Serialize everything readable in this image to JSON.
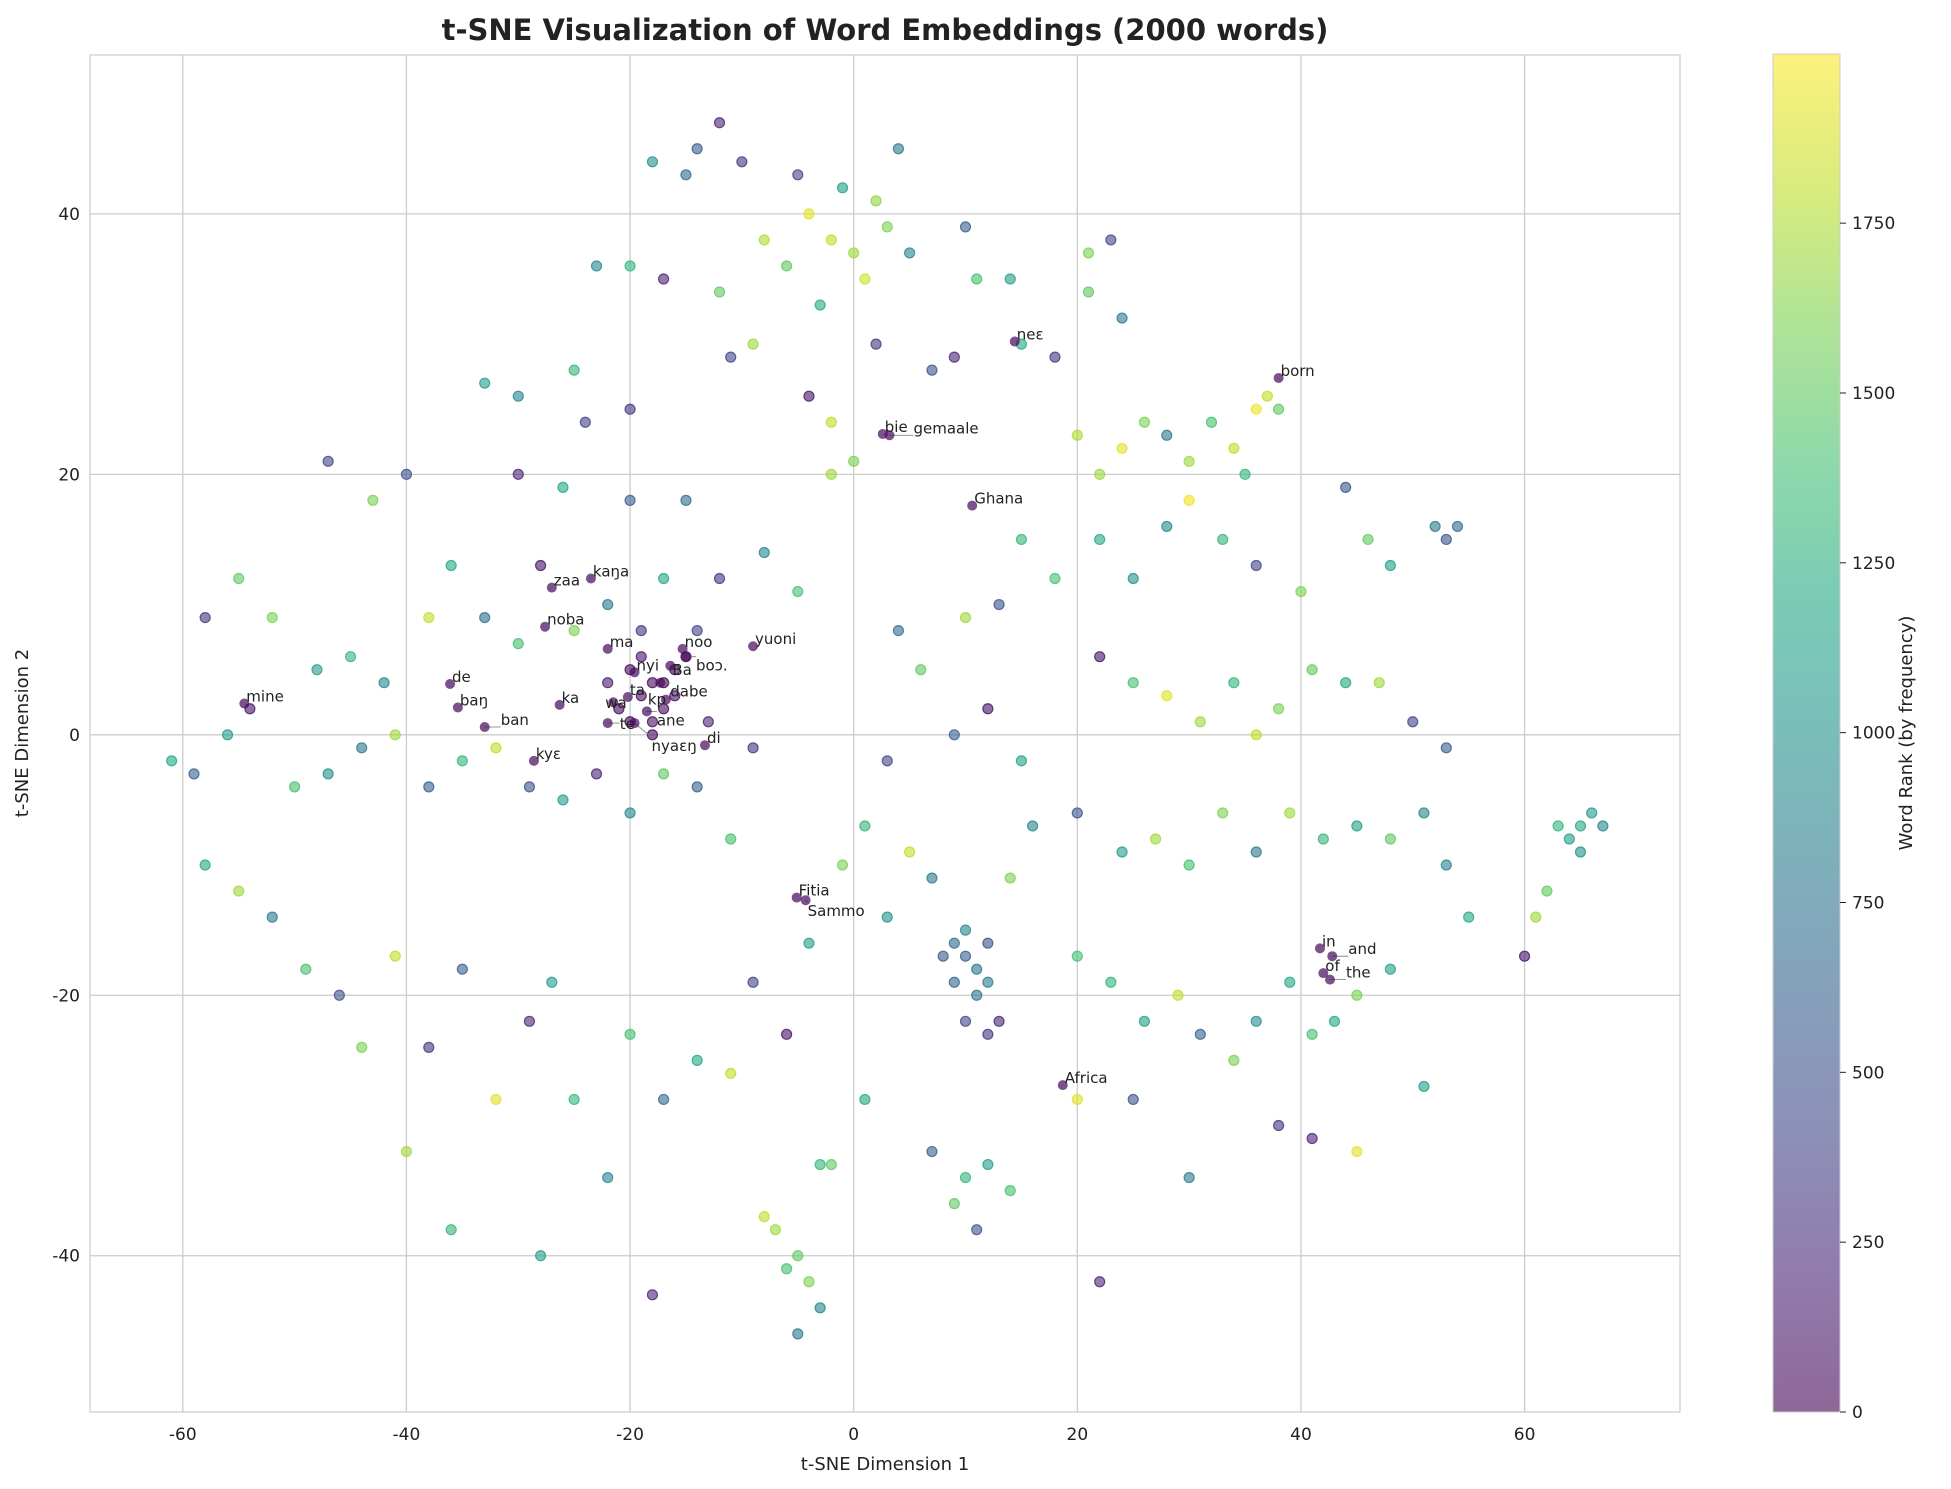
{
  "chart_data": {
    "type": "scatter",
    "title": "t-SNE Visualization of Word Embeddings (2000 words)",
    "xlabel": "t-SNE Dimension 1",
    "ylabel": "t-SNE Dimension 2",
    "xlim": [
      -68.3,
      73.9
    ],
    "ylim": [
      -52,
      52.2
    ],
    "xticks": [
      -60,
      -40,
      -20,
      0,
      20,
      40,
      60
    ],
    "yticks": [
      -40,
      -20,
      0,
      20,
      40
    ],
    "grid": true,
    "colormap": "viridis",
    "point_alpha": 0.6,
    "colorbar": {
      "label": "Word Rank (by frequency)",
      "range": [
        0,
        1999
      ],
      "ticks": [
        0,
        250,
        500,
        750,
        1000,
        1250,
        1500,
        1750
      ]
    },
    "points_note_fields": [
      "x",
      "y",
      "rank"
    ],
    "points": [
      [
        -2,
        38,
        1800
      ],
      [
        -4,
        40,
        1900
      ],
      [
        0,
        37,
        1700
      ],
      [
        3,
        39,
        1600
      ],
      [
        -6,
        36,
        1500
      ],
      [
        1,
        35,
        1850
      ],
      [
        -3,
        33,
        1200
      ],
      [
        5,
        37,
        900
      ],
      [
        -8,
        38,
        1750
      ],
      [
        2,
        41,
        1650
      ],
      [
        -1,
        42,
        1100
      ],
      [
        -5,
        43,
        400
      ],
      [
        -10,
        44,
        300
      ],
      [
        -14,
        45,
        600
      ],
      [
        -12,
        47,
        200
      ],
      [
        -18,
        44,
        1000
      ],
      [
        -15,
        43,
        700
      ],
      [
        4,
        45,
        800
      ],
      [
        -20,
        36,
        1300
      ],
      [
        -17,
        35,
        200
      ],
      [
        -23,
        36,
        900
      ],
      [
        -12,
        34,
        1500
      ],
      [
        -9,
        30,
        1700
      ],
      [
        -11,
        29,
        400
      ],
      [
        -4,
        26,
        100
      ],
      [
        -2,
        24,
        1800
      ],
      [
        0,
        21,
        1600
      ],
      [
        2,
        30,
        300
      ],
      [
        7,
        28,
        500
      ],
      [
        9,
        29,
        200
      ],
      [
        10,
        39,
        600
      ],
      [
        11,
        35,
        1400
      ],
      [
        14,
        35,
        1100
      ],
      [
        15,
        30,
        1200
      ],
      [
        18,
        29,
        300
      ],
      [
        21,
        37,
        1600
      ],
      [
        23,
        38,
        400
      ],
      [
        24,
        32,
        800
      ],
      [
        21,
        34,
        1500
      ],
      [
        -33,
        27,
        1100
      ],
      [
        -30,
        26,
        900
      ],
      [
        -25,
        28,
        1300
      ],
      [
        -24,
        24,
        400
      ],
      [
        -20,
        25,
        300
      ],
      [
        -40,
        20,
        500
      ],
      [
        -43,
        18,
        1600
      ],
      [
        -47,
        21,
        400
      ],
      [
        -30,
        20,
        200
      ],
      [
        -26,
        19,
        1200
      ],
      [
        -20,
        18,
        600
      ],
      [
        -15,
        18,
        700
      ],
      [
        -12,
        12,
        300
      ],
      [
        -8,
        14,
        900
      ],
      [
        -5,
        11,
        1400
      ],
      [
        -2,
        20,
        1700
      ],
      [
        -55,
        12,
        1500
      ],
      [
        -58,
        9,
        300
      ],
      [
        -52,
        9,
        1600
      ],
      [
        -48,
        5,
        1100
      ],
      [
        -45,
        6,
        1300
      ],
      [
        -42,
        4,
        900
      ],
      [
        -38,
        9,
        1800
      ],
      [
        -36,
        13,
        1200
      ],
      [
        -33,
        9,
        700
      ],
      [
        -30,
        7,
        1400
      ],
      [
        -28,
        13,
        100
      ],
      [
        -25,
        8,
        1600
      ],
      [
        -22,
        10,
        800
      ],
      [
        -19,
        8,
        300
      ],
      [
        -17,
        12,
        1200
      ],
      [
        -14,
        8,
        400
      ],
      [
        -61,
        -2,
        1200
      ],
      [
        -59,
        -3,
        600
      ],
      [
        -56,
        0,
        1100
      ],
      [
        -54,
        2,
        100
      ],
      [
        -50,
        -4,
        1400
      ],
      [
        -47,
        -3,
        1000
      ],
      [
        -44,
        -1,
        800
      ],
      [
        -41,
        0,
        1700
      ],
      [
        -38,
        -4,
        600
      ],
      [
        -35,
        -2,
        1300
      ],
      [
        -32,
        -1,
        1800
      ],
      [
        -29,
        -4,
        500
      ],
      [
        -26,
        -5,
        1100
      ],
      [
        -23,
        -3,
        200
      ],
      [
        -20,
        -6,
        900
      ],
      [
        -17,
        -3,
        1500
      ],
      [
        -14,
        -4,
        600
      ],
      [
        -11,
        -8,
        1400
      ],
      [
        -9,
        -1,
        300
      ],
      [
        -20,
        5,
        50
      ],
      [
        -19,
        3,
        80
      ],
      [
        -18,
        4,
        30
      ],
      [
        -17,
        2,
        60
      ],
      [
        -16,
        5,
        20
      ],
      [
        -18,
        1,
        90
      ],
      [
        -21,
        2,
        40
      ],
      [
        -16,
        3,
        110
      ],
      [
        -15,
        6,
        70
      ],
      [
        -19,
        6,
        120
      ],
      [
        -22,
        4,
        150
      ],
      [
        -13,
        1,
        200
      ],
      [
        -18,
        0,
        10
      ],
      [
        -20,
        1,
        25
      ],
      [
        -17,
        4,
        5
      ],
      [
        -58,
        -10,
        1200
      ],
      [
        -55,
        -12,
        1700
      ],
      [
        -52,
        -14,
        800
      ],
      [
        -49,
        -18,
        1400
      ],
      [
        -46,
        -20,
        500
      ],
      [
        -44,
        -24,
        1600
      ],
      [
        -41,
        -17,
        1800
      ],
      [
        -38,
        -24,
        300
      ],
      [
        -35,
        -18,
        600
      ],
      [
        -32,
        -28,
        1900
      ],
      [
        -29,
        -22,
        200
      ],
      [
        -27,
        -19,
        1100
      ],
      [
        -25,
        -28,
        1300
      ],
      [
        -22,
        -34,
        900
      ],
      [
        -20,
        -23,
        1400
      ],
      [
        -17,
        -28,
        700
      ],
      [
        -14,
        -25,
        1200
      ],
      [
        -11,
        -26,
        1800
      ],
      [
        -9,
        -19,
        400
      ],
      [
        -6,
        -23,
        100
      ],
      [
        -28,
        -40,
        1100
      ],
      [
        -40,
        -32,
        1700
      ],
      [
        -36,
        -38,
        1300
      ],
      [
        -5,
        -40,
        1500
      ],
      [
        -4,
        -42,
        1600
      ],
      [
        -3,
        -44,
        900
      ],
      [
        -5,
        -46,
        800
      ],
      [
        -7,
        -38,
        1700
      ],
      [
        -8,
        -37,
        1800
      ],
      [
        -6,
        -41,
        1400
      ],
      [
        -3,
        -33,
        1300
      ],
      [
        -18,
        -43,
        200
      ],
      [
        1,
        -28,
        1200
      ],
      [
        -2,
        -33,
        1500
      ],
      [
        9,
        -16,
        700
      ],
      [
        10,
        -17,
        600
      ],
      [
        11,
        -18,
        800
      ],
      [
        12,
        -16,
        500
      ],
      [
        10,
        -15,
        900
      ],
      [
        9,
        -19,
        650
      ],
      [
        11,
        -20,
        750
      ],
      [
        8,
        -17,
        550
      ],
      [
        12,
        -19,
        850
      ],
      [
        10,
        -22,
        400
      ],
      [
        12,
        -23,
        300
      ],
      [
        13,
        -22,
        200
      ],
      [
        10,
        -34,
        1300
      ],
      [
        9,
        -36,
        1500
      ],
      [
        12,
        -33,
        1100
      ],
      [
        14,
        -35,
        1400
      ],
      [
        7,
        -32,
        600
      ],
      [
        11,
        -38,
        500
      ],
      [
        22,
        20,
        1700
      ],
      [
        24,
        22,
        1900
      ],
      [
        26,
        24,
        1600
      ],
      [
        28,
        23,
        800
      ],
      [
        30,
        21,
        1700
      ],
      [
        32,
        24,
        1400
      ],
      [
        34,
        22,
        1800
      ],
      [
        36,
        25,
        1950
      ],
      [
        37,
        26,
        1800
      ],
      [
        38,
        25,
        1500
      ],
      [
        35,
        20,
        1300
      ],
      [
        20,
        23,
        1750
      ],
      [
        22,
        15,
        1200
      ],
      [
        25,
        12,
        1000
      ],
      [
        28,
        16,
        900
      ],
      [
        30,
        18,
        1950
      ],
      [
        33,
        15,
        1300
      ],
      [
        36,
        13,
        400
      ],
      [
        40,
        11,
        1600
      ],
      [
        44,
        19,
        500
      ],
      [
        46,
        15,
        1500
      ],
      [
        48,
        13,
        1100
      ],
      [
        52,
        16,
        800
      ],
      [
        53,
        15,
        500
      ],
      [
        54,
        16,
        700
      ],
      [
        22,
        6,
        100
      ],
      [
        25,
        4,
        1400
      ],
      [
        28,
        3,
        1900
      ],
      [
        31,
        1,
        1700
      ],
      [
        34,
        4,
        1300
      ],
      [
        36,
        0,
        1800
      ],
      [
        38,
        2,
        1600
      ],
      [
        41,
        5,
        1500
      ],
      [
        44,
        4,
        1200
      ],
      [
        47,
        4,
        1700
      ],
      [
        50,
        1,
        400
      ],
      [
        53,
        -1,
        600
      ],
      [
        20,
        -6,
        500
      ],
      [
        24,
        -9,
        1100
      ],
      [
        27,
        -8,
        1700
      ],
      [
        30,
        -10,
        1400
      ],
      [
        33,
        -6,
        1600
      ],
      [
        36,
        -9,
        800
      ],
      [
        39,
        -6,
        1700
      ],
      [
        42,
        -8,
        1300
      ],
      [
        45,
        -7,
        1100
      ],
      [
        48,
        -8,
        1500
      ],
      [
        51,
        -6,
        900
      ],
      [
        20,
        -17,
        1400
      ],
      [
        23,
        -19,
        1300
      ],
      [
        26,
        -22,
        1100
      ],
      [
        29,
        -20,
        1800
      ],
      [
        31,
        -23,
        600
      ],
      [
        34,
        -25,
        1600
      ],
      [
        36,
        -22,
        1000
      ],
      [
        39,
        -19,
        1200
      ],
      [
        41,
        -23,
        1400
      ],
      [
        43,
        -22,
        1200
      ],
      [
        45,
        -20,
        1600
      ],
      [
        48,
        -18,
        1100
      ],
      [
        51,
        -27,
        1100
      ],
      [
        20,
        -28,
        1900
      ],
      [
        25,
        -28,
        500
      ],
      [
        30,
        -34,
        800
      ],
      [
        38,
        -30,
        300
      ],
      [
        41,
        -31,
        200
      ],
      [
        45,
        -32,
        1900
      ],
      [
        22,
        -42,
        200
      ],
      [
        64,
        -8,
        1100
      ],
      [
        65,
        -7,
        1200
      ],
      [
        66,
        -6,
        1050
      ],
      [
        67,
        -7,
        900
      ],
      [
        65,
        -9,
        1000
      ],
      [
        63,
        -7,
        1300
      ],
      [
        62,
        -12,
        1500
      ],
      [
        61,
        -14,
        1700
      ],
      [
        60,
        -17,
        100
      ],
      [
        53,
        -10,
        900
      ],
      [
        55,
        -14,
        1200
      ],
      [
        4,
        8,
        700
      ],
      [
        6,
        5,
        1500
      ],
      [
        3,
        -2,
        400
      ],
      [
        1,
        -7,
        1300
      ],
      [
        -1,
        -10,
        1600
      ],
      [
        5,
        -9,
        1800
      ],
      [
        7,
        -11,
        800
      ],
      [
        3,
        -14,
        1000
      ],
      [
        -4,
        -16,
        1100
      ],
      [
        15,
        15,
        1300
      ],
      [
        18,
        12,
        1400
      ],
      [
        13,
        10,
        500
      ],
      [
        10,
        9,
        1700
      ],
      [
        12,
        2,
        100
      ],
      [
        9,
        0,
        600
      ],
      [
        15,
        -2,
        1100
      ],
      [
        14,
        -11,
        1600
      ],
      [
        16,
        -7,
        900
      ]
    ],
    "annotations": [
      {
        "text": "born",
        "x": 38.0,
        "y": 27.4
      },
      {
        "text": "neɛ",
        "x": 14.4,
        "y": 30.2
      },
      {
        "text": "bie",
        "x": 2.6,
        "y": 23.1
      },
      {
        "text": "gemaale",
        "x": 3.2,
        "y": 23.0
      },
      {
        "text": "Ghana",
        "x": 10.6,
        "y": 17.6
      },
      {
        "text": "kaŋa",
        "x": -23.5,
        "y": 12.0
      },
      {
        "text": "zaa",
        "x": -27.0,
        "y": 11.3
      },
      {
        "text": "noba",
        "x": -27.6,
        "y": 8.3
      },
      {
        "text": "ma",
        "x": -22.0,
        "y": 6.6
      },
      {
        "text": "yuoni",
        "x": -9.0,
        "y": 6.8
      },
      {
        "text": "noo",
        "x": -15.3,
        "y": 6.6
      },
      {
        "text": "boɔ.",
        "x": -15.0,
        "y": 6.0
      },
      {
        "text": "Ba",
        "x": -16.4,
        "y": 5.3
      },
      {
        "text": "nyi",
        "x": -19.6,
        "y": 4.8
      },
      {
        "text": "dabe",
        "x": -17.3,
        "y": 4.0
      },
      {
        "text": "ta",
        "x": -20.2,
        "y": 2.9
      },
      {
        "text": "wa",
        "x": -21.5,
        "y": 2.5
      },
      {
        "text": "kp",
        "x": -16.8,
        "y": 2.7
      },
      {
        "text": "ane",
        "x": -18.5,
        "y": 1.8
      },
      {
        "text": "te",
        "x": -22.0,
        "y": 0.9
      },
      {
        "text": "nyaɛŋ",
        "x": -19.6,
        "y": 0.9
      },
      {
        "text": "di",
        "x": -13.3,
        "y": -0.8
      },
      {
        "text": "de",
        "x": -36.1,
        "y": 3.9
      },
      {
        "text": "mine",
        "x": -54.5,
        "y": 2.4
      },
      {
        "text": "baŋ",
        "x": -35.4,
        "y": 2.1
      },
      {
        "text": "ban",
        "x": -33.0,
        "y": 0.6
      },
      {
        "text": "ka",
        "x": -26.3,
        "y": 2.3
      },
      {
        "text": "kyɛ",
        "x": -28.6,
        "y": -2.0
      },
      {
        "text": "Fitia",
        "x": -5.1,
        "y": -12.5
      },
      {
        "text": "Sammo",
        "x": -4.3,
        "y": -12.7
      },
      {
        "text": "in",
        "x": 41.7,
        "y": -16.4
      },
      {
        "text": "and",
        "x": 42.8,
        "y": -17.0
      },
      {
        "text": "of",
        "x": 42.0,
        "y": -18.3
      },
      {
        "text": "the",
        "x": 42.6,
        "y": -18.8
      },
      {
        "text": "Africa",
        "x": 18.7,
        "y": -26.9
      }
    ]
  }
}
